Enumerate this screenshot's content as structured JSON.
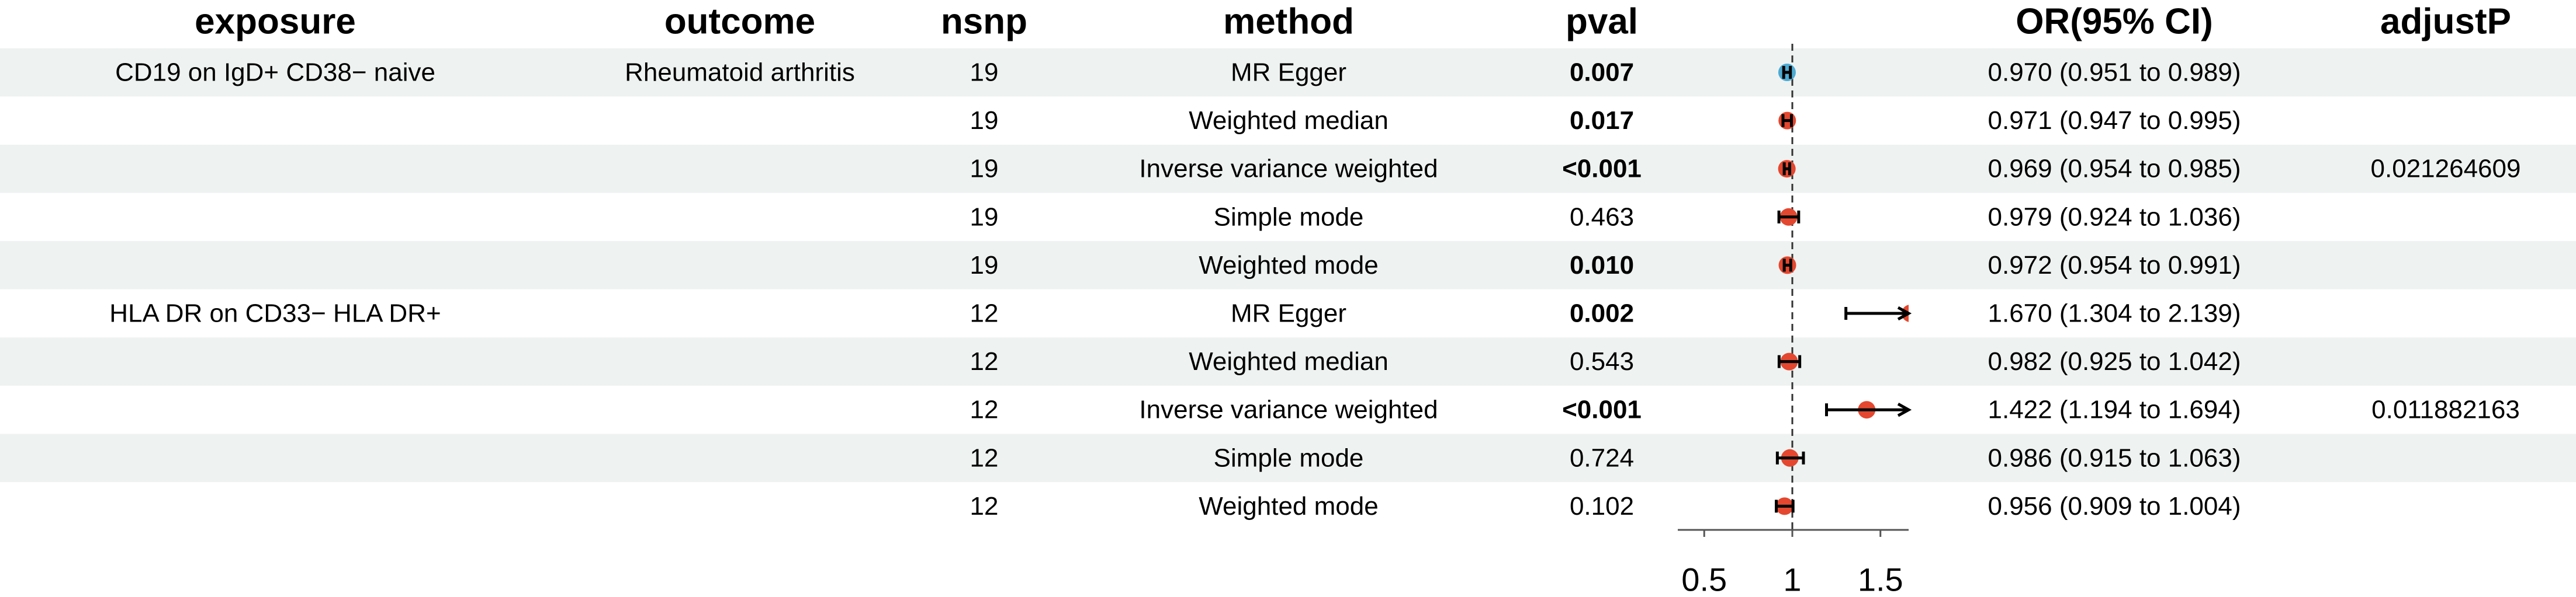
{
  "chart_data": {
    "type": "forest",
    "columns": {
      "exposure": "exposure",
      "outcome": "outcome",
      "nsnp": "nsnp",
      "method": "method",
      "pval": "pval",
      "or_ci": "OR(95% CI)",
      "adjustP": "adjustP"
    },
    "rows": [
      {
        "exposure": "CD19 on IgD+ CD38− naive",
        "outcome": "Rheumatoid arthritis",
        "nsnp": 19,
        "method": "MR Egger",
        "pval": "0.007",
        "pval_bold": true,
        "or": 0.97,
        "lower": 0.951,
        "upper": 0.989,
        "or_ci": "0.970 (0.951 to 0.989)",
        "color": "#4daad2"
      },
      {
        "nsnp": 19,
        "method": "Weighted median",
        "pval": "0.017",
        "pval_bold": true,
        "or": 0.971,
        "lower": 0.947,
        "upper": 0.995,
        "or_ci": "0.971 (0.947 to 0.995)",
        "color": "#e4472f"
      },
      {
        "nsnp": 19,
        "method": "Inverse variance weighted",
        "pval": "<0.001",
        "pval_bold": true,
        "or": 0.969,
        "lower": 0.954,
        "upper": 0.985,
        "or_ci": "0.969 (0.954 to 0.985)",
        "adjustP": 0.021264609,
        "color": "#e4472f"
      },
      {
        "nsnp": 19,
        "method": "Simple mode",
        "pval": "0.463",
        "pval_bold": false,
        "or": 0.979,
        "lower": 0.924,
        "upper": 1.036,
        "or_ci": "0.979 (0.924 to 1.036)",
        "color": "#e4472f"
      },
      {
        "nsnp": 19,
        "method": "Weighted mode",
        "pval": "0.010",
        "pval_bold": true,
        "or": 0.972,
        "lower": 0.954,
        "upper": 0.991,
        "or_ci": "0.972 (0.954 to 0.991)",
        "color": "#e4472f"
      },
      {
        "exposure": "HLA DR on CD33− HLA DR+",
        "nsnp": 12,
        "method": "MR Egger",
        "pval": "0.002",
        "pval_bold": true,
        "or": 1.67,
        "lower": 1.304,
        "upper": 2.139,
        "or_ci": "1.670 (1.304 to 2.139)",
        "color": "#e4472f"
      },
      {
        "nsnp": 12,
        "method": "Weighted median",
        "pval": "0.543",
        "pval_bold": false,
        "or": 0.982,
        "lower": 0.925,
        "upper": 1.042,
        "or_ci": "0.982 (0.925 to 1.042)",
        "color": "#e4472f"
      },
      {
        "nsnp": 12,
        "method": "Inverse variance weighted",
        "pval": "<0.001",
        "pval_bold": true,
        "or": 1.422,
        "lower": 1.194,
        "upper": 1.694,
        "or_ci": "1.422 (1.194 to 1.694)",
        "adjustP": 0.011882163,
        "color": "#e4472f"
      },
      {
        "nsnp": 12,
        "method": "Simple mode",
        "pval": "0.724",
        "pval_bold": false,
        "or": 0.986,
        "lower": 0.915,
        "upper": 1.063,
        "or_ci": "0.986 (0.915 to 1.063)",
        "color": "#e4472f"
      },
      {
        "nsnp": 12,
        "method": "Weighted mode",
        "pval": "0.102",
        "pval_bold": false,
        "or": 0.956,
        "lower": 0.909,
        "upper": 1.004,
        "or_ci": "0.956 (0.909 to 1.004)",
        "color": "#e4472f"
      }
    ],
    "xlim": [
      0.35,
      1.66
    ],
    "xticks": [
      0.5,
      1,
      1.5
    ],
    "ref_line": 1,
    "band_color": "#eef2f1"
  }
}
